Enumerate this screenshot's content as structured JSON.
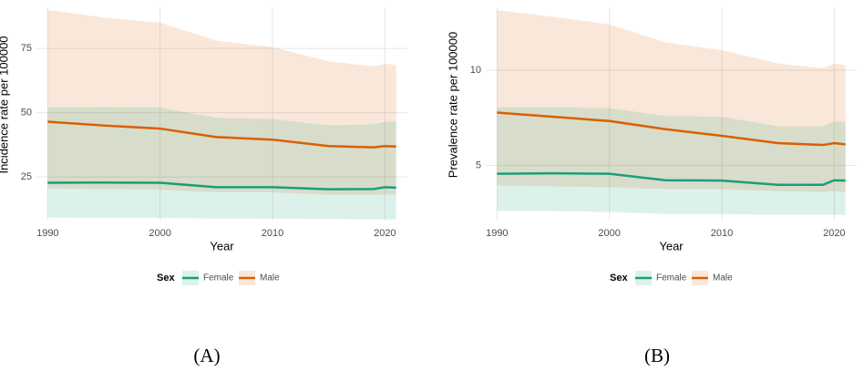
{
  "chart_data": [
    {
      "type": "line",
      "caption": "(A)",
      "x_label": "Year",
      "y_label": "Incidence rate per 100000",
      "x": [
        1990,
        1995,
        2000,
        2005,
        2010,
        2015,
        2019,
        2020,
        2021
      ],
      "xlim": [
        1989,
        2022
      ],
      "xticks": [
        1990,
        2000,
        2010,
        2020
      ],
      "ylim": [
        8,
        91
      ],
      "yticks": [
        25,
        50,
        75
      ],
      "grid": true,
      "legend_title": "Sex",
      "series": [
        {
          "name": "Female",
          "color": "#1b9e77",
          "values": [
            22.7,
            22.8,
            22.7,
            21,
            21,
            20.2,
            20.3,
            21,
            20.8
          ],
          "lower": [
            9.2,
            9.1,
            9,
            8.8,
            8.7,
            8.6,
            8.5,
            8.5,
            8.5
          ],
          "upper": [
            52,
            52.2,
            52,
            48,
            47.5,
            45,
            45.5,
            46.5,
            46.5
          ]
        },
        {
          "name": "Male",
          "color": "#d95f02",
          "values": [
            46.5,
            45,
            43.8,
            40.5,
            39.5,
            37,
            36.5,
            37,
            36.8
          ],
          "lower": [
            20.5,
            20.3,
            20,
            19,
            19,
            18,
            18,
            18.2,
            18
          ],
          "upper": [
            90,
            87,
            85,
            78,
            75.5,
            70,
            68,
            69,
            68.5
          ]
        }
      ]
    },
    {
      "type": "line",
      "caption": "(B)",
      "x_label": "Year",
      "y_label": "Prevalence rate per 100000",
      "x": [
        1990,
        1995,
        2000,
        2005,
        2010,
        2015,
        2019,
        2020,
        2021
      ],
      "xlim": [
        1989,
        2022
      ],
      "xticks": [
        1990,
        2000,
        2010,
        2020
      ],
      "ylim": [
        2.1,
        13.3
      ],
      "yticks": [
        5,
        10
      ],
      "grid": true,
      "legend_title": "Sex",
      "series": [
        {
          "name": "Female",
          "color": "#1b9e77",
          "values": [
            4.56,
            4.58,
            4.56,
            4.22,
            4.2,
            3.98,
            3.98,
            4.22,
            4.2
          ],
          "lower": [
            2.6,
            2.6,
            2.55,
            2.45,
            2.45,
            2.4,
            2.4,
            2.4,
            2.4
          ],
          "upper": [
            8.05,
            8.05,
            8.0,
            7.6,
            7.55,
            7.05,
            7.05,
            7.3,
            7.3
          ]
        },
        {
          "name": "Male",
          "color": "#d95f02",
          "values": [
            7.77,
            7.55,
            7.33,
            6.9,
            6.55,
            6.17,
            6.07,
            6.17,
            6.1
          ],
          "lower": [
            3.95,
            3.9,
            3.85,
            3.75,
            3.75,
            3.65,
            3.6,
            3.65,
            3.6
          ],
          "upper": [
            13.15,
            12.8,
            12.4,
            11.45,
            11.05,
            10.35,
            10.1,
            10.35,
            10.25
          ]
        }
      ]
    }
  ]
}
